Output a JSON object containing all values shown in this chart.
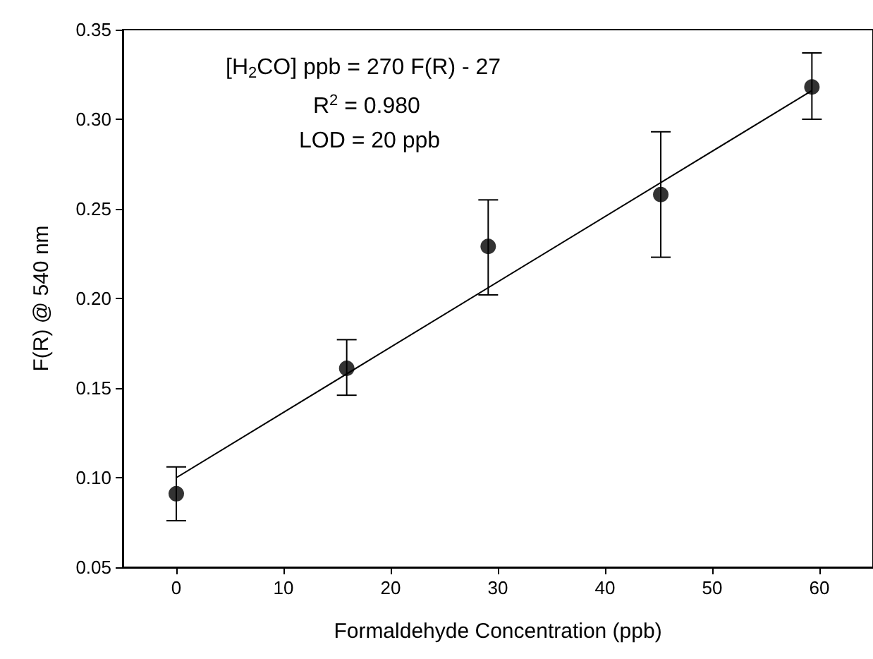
{
  "chart_data": {
    "type": "scatter",
    "xlabel": "Formaldehyde Concentration (ppb)",
    "ylabel": "F(R) @ 540 nm",
    "xlim": [
      -5,
      65
    ],
    "xticks": [
      0,
      10,
      20,
      30,
      40,
      50,
      60
    ],
    "ylim": [
      0.05,
      0.35
    ],
    "yticks": [
      {
        "value": 0.05,
        "label": "0.05"
      },
      {
        "value": 0.1,
        "label": "0.10"
      },
      {
        "value": 0.15,
        "label": "0.15"
      },
      {
        "value": 0.2,
        "label": "0.20"
      },
      {
        "value": 0.25,
        "label": "0.25"
      },
      {
        "value": 0.3,
        "label": "0.30"
      },
      {
        "value": 0.35,
        "label": "0.35"
      }
    ],
    "series": [
      {
        "color": "#000000",
        "marker": "circle",
        "x": [
          0,
          15.9,
          29.1,
          45.2,
          59.3
        ],
        "values": [
          0.091,
          0.161,
          0.229,
          0.258,
          0.318
        ],
        "errors": [
          [
            0.076,
            0.106
          ],
          [
            0.146,
            0.177
          ],
          [
            0.202,
            0.255
          ],
          [
            0.223,
            0.293
          ],
          [
            0.3,
            0.337
          ]
        ]
      },
      {
        "type": "line",
        "color": "#000000",
        "marker": "none",
        "line_style": "solid",
        "x": [
          0,
          59.3
        ],
        "values": [
          0.1,
          0.316
        ]
      }
    ],
    "annotations": [
      "[H$_{2}$CO] ppb = 270 F(R) - 27",
      "R$^{2}$ = 0.980",
      "LOD = 20 ppb"
    ]
  }
}
